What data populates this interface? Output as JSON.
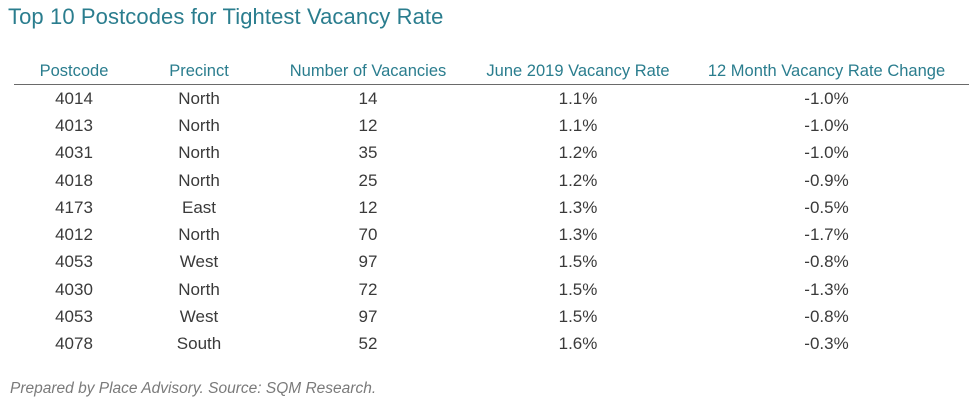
{
  "title": "Top 10 Postcodes for Tightest Vacancy Rate",
  "columns": [
    "Postcode",
    "Precinct",
    "Number of Vacancies",
    "June 2019 Vacancy Rate",
    "12 Month Vacancy Rate Change"
  ],
  "rows": [
    [
      "4014",
      "North",
      "14",
      "1.1%",
      "-1.0%"
    ],
    [
      "4013",
      "North",
      "12",
      "1.1%",
      "-1.0%"
    ],
    [
      "4031",
      "North",
      "35",
      "1.2%",
      "-1.0%"
    ],
    [
      "4018",
      "North",
      "25",
      "1.2%",
      "-0.9%"
    ],
    [
      "4173",
      "East",
      "12",
      "1.3%",
      "-0.5%"
    ],
    [
      "4012",
      "North",
      "70",
      "1.3%",
      "-1.7%"
    ],
    [
      "4053",
      "West",
      "97",
      "1.5%",
      "-0.8%"
    ],
    [
      "4030",
      "North",
      "72",
      "1.5%",
      "-1.3%"
    ],
    [
      "4053",
      "West",
      "97",
      "1.5%",
      "-0.8%"
    ],
    [
      "4078",
      "South",
      "52",
      "1.6%",
      "-0.3%"
    ]
  ],
  "footer": "Prepared by Place Advisory. Source: SQM Research.",
  "colors": {
    "title": "#2a7d8e",
    "header": "#2a7d8e",
    "text": "#3a3a3a",
    "footer": "#7a7a7a"
  }
}
